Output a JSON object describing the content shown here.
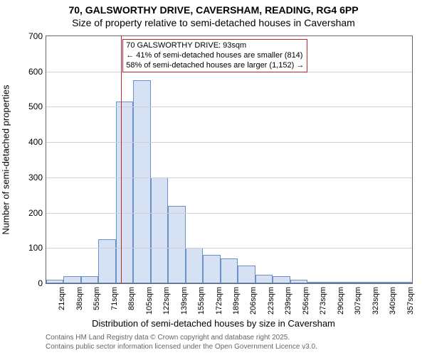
{
  "title_line1": "70, GALSWORTHY DRIVE, CAVERSHAM, READING, RG4 6PP",
  "title_line2": "Size of property relative to semi-detached houses in Caversham",
  "y_axis_label": "Number of semi-detached properties",
  "x_axis_label": "Distribution of semi-detached houses by size in Caversham",
  "footer_line1": "Contains HM Land Registry data © Crown copyright and database right 2025.",
  "footer_line2": "Contains public sector information licensed under the Open Government Licence v3.0.",
  "chart": {
    "type": "histogram",
    "ylim": [
      0,
      700
    ],
    "ytick_step": 100,
    "yticks": [
      0,
      100,
      200,
      300,
      400,
      500,
      600,
      700
    ],
    "x_categories": [
      "21sqm",
      "38sqm",
      "55sqm",
      "71sqm",
      "88sqm",
      "105sqm",
      "122sqm",
      "139sqm",
      "155sqm",
      "172sqm",
      "189sqm",
      "206sqm",
      "223sqm",
      "239sqm",
      "256sqm",
      "273sqm",
      "290sqm",
      "307sqm",
      "323sqm",
      "340sqm",
      "357sqm"
    ],
    "bar_values": [
      10,
      20,
      20,
      125,
      515,
      575,
      300,
      220,
      100,
      80,
      70,
      50,
      25,
      20,
      10,
      0,
      4,
      0,
      0,
      0,
      3
    ],
    "bar_fill_color": "#d6e2f3",
    "bar_border_color": "#6b8fc9",
    "grid_color": "#d0d0d0",
    "axis_color": "#666666",
    "tick_fontsize": 12,
    "xtick_fontsize": 11,
    "label_fontsize": 13,
    "title_fontsize": 14,
    "bar_width_ratio": 1.0,
    "background_color": "#ffffff",
    "marker": {
      "bin_index": 4,
      "position_in_bin": 0.3,
      "line_color": "#c2272d"
    },
    "annotation": {
      "lines": [
        "← 41% of semi-detached houses are smaller (814)",
        "58% of semi-detached houses are larger (1,152) →"
      ],
      "header": "70 GALSWORTHY DRIVE: 93sqm",
      "border_color": "#c2272d",
      "text_color": "#000000",
      "background_color": "#ffffff",
      "fontsize": 11
    }
  }
}
